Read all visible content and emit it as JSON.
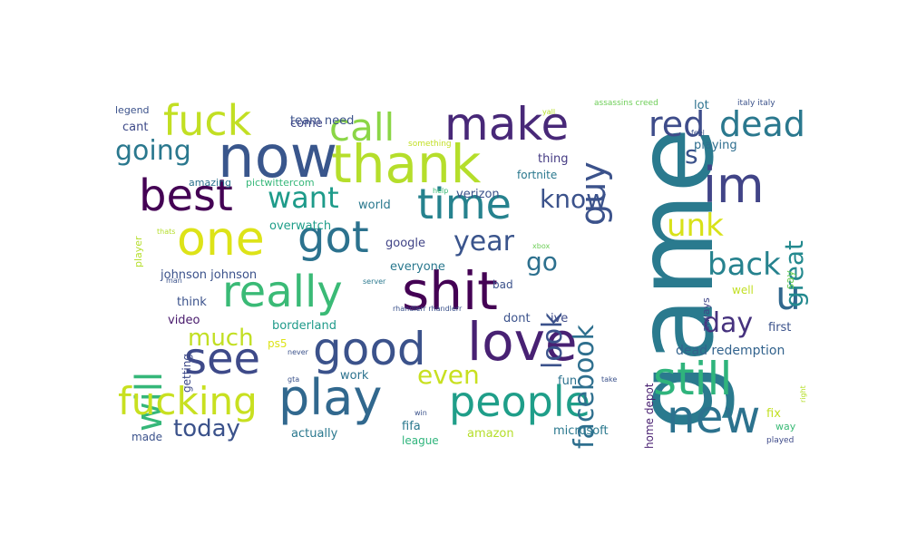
{
  "palette": {
    "background": "#ffffff",
    "dark_purple": "#440154",
    "indigo": "#3e4a89",
    "steel_blue": "#31688e",
    "teal": "#26828e",
    "green_teal": "#1f9e89",
    "green": "#35b779",
    "light_green": "#6ece58",
    "lime": "#b5de2b",
    "yellow": "#dde318"
  },
  "words": [
    {
      "text": "game",
      "color": "#2a7a8e"
    },
    {
      "text": "now",
      "color": "#39568c"
    },
    {
      "text": "thank",
      "color": "#b5de2b"
    },
    {
      "text": "love",
      "color": "#482173"
    },
    {
      "text": "good",
      "color": "#3b528b"
    },
    {
      "text": "shit",
      "color": "#440154"
    },
    {
      "text": "play",
      "color": "#31688e"
    },
    {
      "text": "people",
      "color": "#1f9e89"
    },
    {
      "text": "new",
      "color": "#2c728e"
    },
    {
      "text": "still",
      "color": "#2fb47c"
    },
    {
      "text": "see",
      "color": "#3e4a89"
    },
    {
      "text": "one",
      "color": "#dde318"
    },
    {
      "text": "make",
      "color": "#482878"
    },
    {
      "text": "fuck",
      "color": "#c2df23"
    },
    {
      "text": "best",
      "color": "#440154"
    },
    {
      "text": "got",
      "color": "#2c728e"
    },
    {
      "text": "time",
      "color": "#26828e"
    },
    {
      "text": "really",
      "color": "#3aba76"
    },
    {
      "text": "will",
      "color": "#35b779"
    },
    {
      "text": "call",
      "color": "#8bd646"
    },
    {
      "text": "im",
      "color": "#414487"
    },
    {
      "text": "guy",
      "color": "#3b528b"
    },
    {
      "text": "red",
      "color": "#3e4c8a"
    },
    {
      "text": "dead",
      "color": "#2a788e"
    },
    {
      "text": "fucking",
      "color": "#c8e020"
    },
    {
      "text": "u",
      "color": "#31688e"
    },
    {
      "text": "facebook",
      "color": "#2e6f8e"
    },
    {
      "text": "look",
      "color": "#3b528b"
    },
    {
      "text": "year",
      "color": "#3a548c"
    },
    {
      "text": "back",
      "color": "#26828e"
    },
    {
      "text": "want",
      "color": "#1e9b8a"
    },
    {
      "text": "going",
      "color": "#2a788e"
    },
    {
      "text": "know",
      "color": "#3b528b"
    },
    {
      "text": "unk",
      "color": "#d8e219"
    },
    {
      "text": "day",
      "color": "#46327e"
    },
    {
      "text": "great",
      "color": "#23898e"
    },
    {
      "text": "even",
      "color": "#c8e020"
    },
    {
      "text": "much",
      "color": "#c2df23"
    },
    {
      "text": "go",
      "color": "#2d708e"
    },
    {
      "text": "today",
      "color": "#3b528b"
    },
    {
      "text": "s",
      "color": "#3b528b"
    },
    {
      "text": "dead redemption",
      "color": "#33638d"
    },
    {
      "text": "playing",
      "color": "#2e6e8e"
    },
    {
      "text": "home depot",
      "color": "#481f70"
    },
    {
      "text": "microsoft",
      "color": "#2a788e"
    },
    {
      "text": "fix",
      "color": "#c2df23"
    },
    {
      "text": "first",
      "color": "#3b528b"
    },
    {
      "text": "verizon",
      "color": "#3b528b"
    },
    {
      "text": "team need",
      "color": "#3b528b"
    },
    {
      "text": "cant",
      "color": "#3e4a89"
    },
    {
      "text": "come",
      "color": "#404688"
    },
    {
      "text": "borderland",
      "color": "#1f9a8a"
    },
    {
      "text": "johnson johnson",
      "color": "#3b528b"
    },
    {
      "text": "overwatch",
      "color": "#1f9e89"
    },
    {
      "text": "world",
      "color": "#2a788e"
    },
    {
      "text": "google",
      "color": "#414487"
    },
    {
      "text": "everyone",
      "color": "#2a788e"
    },
    {
      "text": "think",
      "color": "#3b528b"
    },
    {
      "text": "video",
      "color": "#481a6c"
    },
    {
      "text": "thing",
      "color": "#443a83"
    },
    {
      "text": "fortnite",
      "color": "#2a788e"
    },
    {
      "text": "amazing",
      "color": "#2c728e"
    },
    {
      "text": "pictwittercom",
      "color": "#35b779"
    },
    {
      "text": "lot",
      "color": "#2c728e"
    },
    {
      "text": "always",
      "color": "#404688"
    },
    {
      "text": "well",
      "color": "#c2df23"
    },
    {
      "text": "say",
      "color": "#6ece58"
    },
    {
      "text": "ive",
      "color": "#3e4a89"
    },
    {
      "text": "dont",
      "color": "#3b528b"
    },
    {
      "text": "bad",
      "color": "#3b528b"
    },
    {
      "text": "fun",
      "color": "#2c728e"
    },
    {
      "text": "work",
      "color": "#2c728e"
    },
    {
      "text": "actually",
      "color": "#2a788e"
    },
    {
      "text": "fifa",
      "color": "#2a788e"
    },
    {
      "text": "league",
      "color": "#2fb47c"
    },
    {
      "text": "amazon",
      "color": "#b5de2b"
    },
    {
      "text": "made",
      "color": "#3b528b"
    },
    {
      "text": "ps5",
      "color": "#dde318"
    },
    {
      "text": "getting",
      "color": "#3e4a89"
    },
    {
      "text": "legend",
      "color": "#3b528b"
    },
    {
      "text": "player",
      "color": "#b5de2b"
    },
    {
      "text": "assassins creed",
      "color": "#6ece58"
    },
    {
      "text": "italy italy",
      "color": "#3b528b"
    },
    {
      "text": "yall",
      "color": "#b5de2b"
    },
    {
      "text": "something",
      "color": "#c2df23"
    },
    {
      "text": "help",
      "color": "#3aba76"
    },
    {
      "text": "xbox",
      "color": "#6ece58"
    },
    {
      "text": "server",
      "color": "#2a788e"
    },
    {
      "text": "rhandlerr rhandlerr",
      "color": "#3b528b"
    },
    {
      "text": "never",
      "color": "#3b528b"
    },
    {
      "text": "win",
      "color": "#3b528b"
    },
    {
      "text": "gta",
      "color": "#3b528b"
    },
    {
      "text": "take",
      "color": "#3b528b"
    },
    {
      "text": "feel",
      "color": "#3b528b"
    },
    {
      "text": "right",
      "color": "#b5de2b"
    },
    {
      "text": "way",
      "color": "#3aba76"
    },
    {
      "text": "played",
      "color": "#3e4a89"
    },
    {
      "text": "man",
      "color": "#3b528b"
    },
    {
      "text": "thats",
      "color": "#b5de2b"
    }
  ]
}
